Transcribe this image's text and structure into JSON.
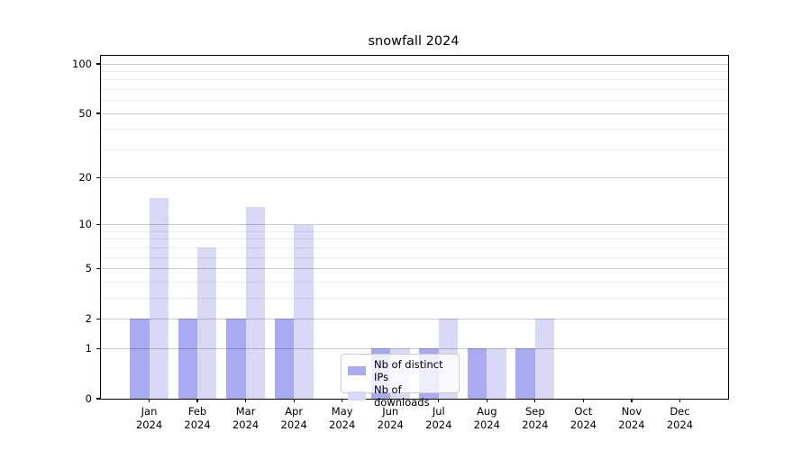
{
  "title": "snowfall 2024",
  "chart_data": {
    "type": "bar",
    "title": "snowfall 2024",
    "categories": [
      "Jan 2024",
      "Feb 2024",
      "Mar 2024",
      "Apr 2024",
      "May 2024",
      "Jun 2024",
      "Jul 2024",
      "Aug 2024",
      "Sep 2024",
      "Oct 2024",
      "Nov 2024",
      "Dec 2024"
    ],
    "series": [
      {
        "name": "Nb of distinct IPs",
        "color": "#aaaaf2",
        "values": [
          2,
          2,
          2,
          2,
          0,
          1,
          1,
          1,
          1,
          0,
          0,
          0
        ]
      },
      {
        "name": "Nb of downloads",
        "color": "#d9d9f7",
        "values": [
          15,
          7,
          13,
          10,
          0,
          1,
          2,
          1,
          2,
          0,
          0,
          0
        ]
      }
    ],
    "xlabel": "",
    "ylabel": "",
    "yscale": "log1p",
    "ylim": [
      0,
      112
    ],
    "yticks_major": [
      0,
      1,
      2,
      5,
      10,
      20,
      50,
      100
    ],
    "yticks_minor": [
      3,
      4,
      6,
      7,
      8,
      9,
      30,
      40,
      60,
      70,
      80,
      90
    ],
    "grid": "on",
    "legend_position": "lower center",
    "colors": {
      "background": "#ffffff",
      "axis": "#000000",
      "grid_major": "#cccccc",
      "grid_minor": "#ebebeb"
    }
  }
}
